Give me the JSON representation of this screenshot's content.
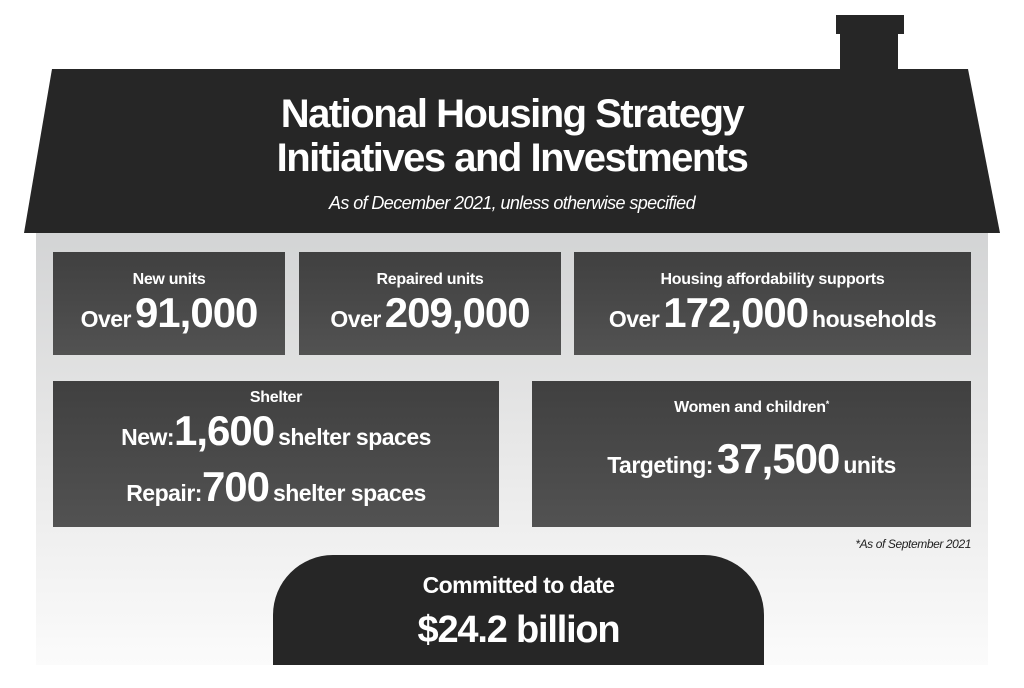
{
  "header": {
    "title_line1": "National Housing Strategy",
    "title_line2": "Initiatives and Investments",
    "subtitle": "As of December 2021, unless otherwise specified"
  },
  "stats": [
    {
      "label": "New units",
      "prefix": "Over",
      "value": "91,000",
      "suffix": ""
    },
    {
      "label": "Repaired units",
      "prefix": "Over",
      "value": "209,000",
      "suffix": ""
    },
    {
      "label": "Housing affordability supports",
      "prefix": "Over",
      "value": "172,000",
      "suffix": "households"
    }
  ],
  "shelter": {
    "label": "Shelter",
    "new_prefix": "New:",
    "new_value": "1,600",
    "new_suffix": "shelter spaces",
    "repair_prefix": "Repair:",
    "repair_value": "700",
    "repair_suffix": "shelter spaces"
  },
  "women": {
    "label": "Women and children",
    "marker": "*",
    "prefix": "Targeting:",
    "value": "37,500",
    "suffix": "units"
  },
  "footnote": "*As of September  2021",
  "committed": {
    "label": "Committed to date",
    "amount": "$24.2 billion"
  },
  "colors": {
    "roof": "#262626",
    "box": "#4a4a4a",
    "wall_top": "#d3d4d5",
    "wall_bottom": "#ffffff"
  }
}
